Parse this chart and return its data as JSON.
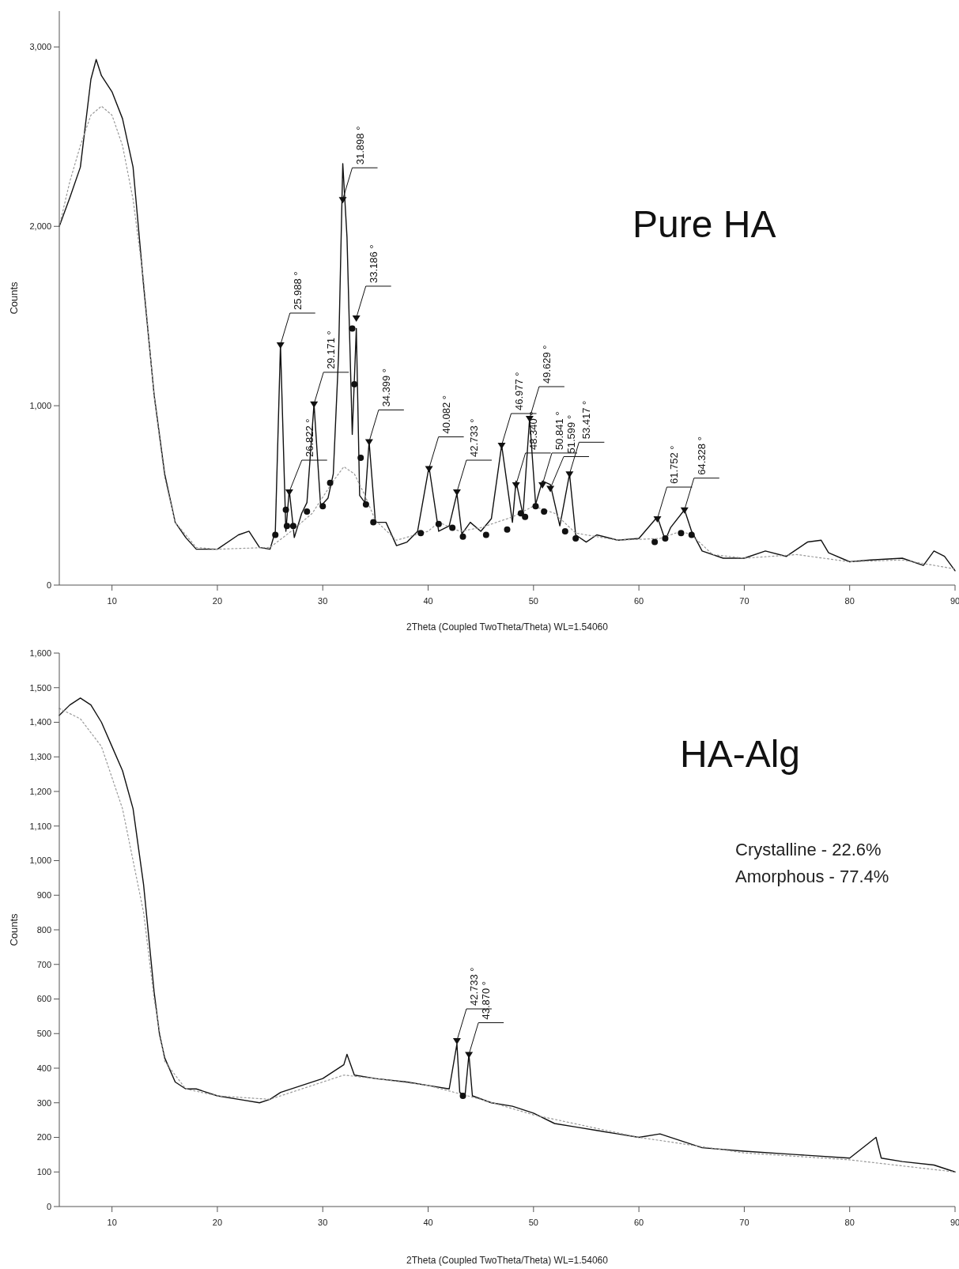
{
  "chart_data": [
    {
      "type": "line",
      "title": "Pure HA",
      "xlabel": "2Theta (Coupled TwoTheta/Theta) WL=1.54060",
      "ylabel": "Counts",
      "xlim": [
        5,
        90
      ],
      "ylim": [
        0,
        3200
      ],
      "xticks": [
        10,
        20,
        30,
        40,
        50,
        60,
        70,
        80,
        90
      ],
      "yticks": [
        0,
        {
          "value": 1000,
          "label": "1,000"
        },
        {
          "value": 2000,
          "label": "2,000"
        },
        {
          "value": 3000,
          "label": "3,000"
        }
      ],
      "marker": "none",
      "series": [
        {
          "color": "#111111",
          "line_style": "solid",
          "x": [
            5,
            6,
            7,
            8,
            8.5,
            9,
            10,
            11,
            12,
            13,
            14,
            15,
            16,
            17,
            18,
            20,
            22,
            23,
            24,
            25,
            25.5,
            25.988,
            26.5,
            26.822,
            27.3,
            28,
            28.5,
            29.171,
            29.8,
            30.5,
            31,
            31.5,
            31.9,
            32.3,
            32.8,
            33.186,
            33.5,
            34,
            34.399,
            35,
            36,
            37,
            38,
            39,
            40.082,
            41,
            42,
            42.733,
            43.2,
            44,
            45,
            46,
            46.977,
            48,
            48.34,
            49,
            49.629,
            50.2,
            50.841,
            51.599,
            52.5,
            53.417,
            54,
            55,
            56,
            58,
            60,
            61.752,
            62.5,
            63,
            64.328,
            65,
            66,
            68,
            70,
            72,
            74,
            76,
            77.3,
            78,
            80,
            82,
            85,
            87,
            88,
            89,
            90
          ],
          "values": [
            2000,
            2160,
            2330,
            2820,
            2930,
            2840,
            2750,
            2600,
            2330,
            1670,
            1060,
            620,
            350,
            265,
            200,
            200,
            280,
            300,
            210,
            200,
            300,
            1340,
            300,
            530,
            265,
            400,
            460,
            1010,
            440,
            485,
            620,
            1280,
            2350,
            1940,
            840,
            1430,
            500,
            460,
            800,
            350,
            350,
            220,
            240,
            300,
            660,
            300,
            330,
            510,
            285,
            350,
            300,
            370,
            780,
            350,
            580,
            390,
            930,
            450,
            580,
            560,
            330,
            620,
            280,
            240,
            280,
            250,
            260,
            380,
            250,
            320,
            420,
            300,
            190,
            150,
            150,
            190,
            160,
            240,
            250,
            180,
            130,
            140,
            150,
            110,
            190,
            160,
            80
          ]
        },
        {
          "color": "#999999",
          "line_style": "dotted",
          "x": [
            5,
            6,
            7,
            8,
            9,
            10,
            11,
            12,
            13,
            14,
            15,
            16,
            18,
            20,
            25,
            27,
            29,
            31,
            32,
            33,
            34,
            35,
            37,
            40,
            41,
            43,
            45,
            48,
            50,
            52,
            54,
            58,
            62,
            64,
            65,
            67,
            70,
            75,
            80,
            85,
            90
          ],
          "values": [
            2000,
            2250,
            2450,
            2620,
            2670,
            2620,
            2450,
            2150,
            1700,
            1050,
            600,
            350,
            210,
            200,
            210,
            300,
            400,
            580,
            660,
            620,
            500,
            360,
            250,
            300,
            350,
            300,
            320,
            380,
            440,
            400,
            290,
            250,
            260,
            300,
            280,
            170,
            150,
            170,
            130,
            140,
            90
          ]
        },
        {
          "type": "scatter",
          "color": "#111111",
          "marker": "circle",
          "x": [
            25.5,
            26.5,
            26.6,
            27.2,
            28.5,
            30,
            30.7,
            32.8,
            33,
            33.6,
            34.1,
            34.8,
            39.3,
            41,
            42.3,
            43.3,
            45.5,
            47.5,
            48.8,
            49.2,
            50.2,
            51,
            53,
            54,
            61.5,
            62.5,
            64,
            65
          ],
          "values": [
            280,
            420,
            330,
            330,
            410,
            440,
            570,
            1430,
            1120,
            710,
            450,
            350,
            290,
            340,
            320,
            270,
            280,
            310,
            400,
            380,
            440,
            410,
            300,
            260,
            240,
            260,
            290,
            280
          ]
        },
        {
          "type": "scatter",
          "color": "#111111",
          "marker": "triangle",
          "x": [
            25.988,
            26.822,
            29.171,
            31.898,
            33.186,
            34.399,
            40.082,
            42.733,
            46.977,
            48.34,
            49.629,
            50.841,
            51.599,
            53.417,
            61.752,
            64.328
          ],
          "values": [
            1340,
            520,
            1010,
            2150,
            1490,
            800,
            650,
            520,
            780,
            560,
            930,
            560,
            540,
            620,
            370,
            420
          ]
        }
      ],
      "annotations": [
        {
          "text": "25.988 °",
          "x": 25.988,
          "y": 1340
        },
        {
          "text": "26.822 °",
          "x": 26.822,
          "y": 520
        },
        {
          "text": "29.171 °",
          "x": 29.171,
          "y": 1010
        },
        {
          "text": "31.898 °",
          "x": 31.898,
          "y": 2150
        },
        {
          "text": "33.186 °",
          "x": 33.186,
          "y": 1490
        },
        {
          "text": "34.399 °",
          "x": 34.399,
          "y": 800
        },
        {
          "text": "40.082 °",
          "x": 40.082,
          "y": 650
        },
        {
          "text": "42.733 °",
          "x": 42.733,
          "y": 520
        },
        {
          "text": "46.977 °",
          "x": 46.977,
          "y": 780
        },
        {
          "text": "48.340 °",
          "x": 48.34,
          "y": 560
        },
        {
          "text": "49.629 °",
          "x": 49.629,
          "y": 930
        },
        {
          "text": "50.841 °",
          "x": 50.841,
          "y": 560
        },
        {
          "text": "51.599 °",
          "x": 51.599,
          "y": 540
        },
        {
          "text": "53.417 °",
          "x": 53.417,
          "y": 620
        },
        {
          "text": "61.752 °",
          "x": 61.752,
          "y": 370
        },
        {
          "text": "64.328 °",
          "x": 64.328,
          "y": 420
        }
      ]
    },
    {
      "type": "line",
      "title": "HA-Alg",
      "xlabel": "2Theta (Coupled TwoTheta/Theta) WL=1.54060",
      "ylabel": "Counts",
      "xlim": [
        5,
        90
      ],
      "ylim": [
        0,
        1600
      ],
      "xticks": [
        10,
        20,
        30,
        40,
        50,
        60,
        70,
        80,
        90
      ],
      "yticks": [
        0,
        100,
        200,
        300,
        400,
        500,
        600,
        700,
        800,
        900,
        {
          "value": 1000,
          "label": "1,000"
        },
        {
          "value": 1100,
          "label": "1,100"
        },
        {
          "value": 1200,
          "label": "1,200"
        },
        {
          "value": 1300,
          "label": "1,300"
        },
        {
          "value": 1400,
          "label": "1,400"
        },
        {
          "value": 1500,
          "label": "1,500"
        },
        {
          "value": 1600,
          "label": "1,600"
        }
      ],
      "marker": "none",
      "series": [
        {
          "color": "#111111",
          "line_style": "solid",
          "x": [
            5,
            6,
            7,
            8,
            9,
            10,
            11,
            12,
            13,
            14,
            14.5,
            15,
            16,
            17,
            18,
            19,
            20,
            22,
            24,
            25,
            26,
            28,
            30,
            32,
            32.3,
            33,
            35,
            38,
            40,
            42,
            42.733,
            43,
            43.5,
            43.87,
            44.2,
            46,
            48,
            50,
            52,
            54,
            56,
            58,
            60,
            62,
            64,
            66,
            70,
            75,
            80,
            82.5,
            83,
            85,
            88,
            90
          ],
          "values": [
            1420,
            1450,
            1470,
            1450,
            1400,
            1330,
            1260,
            1150,
            930,
            620,
            500,
            430,
            360,
            340,
            340,
            330,
            320,
            310,
            300,
            310,
            330,
            350,
            370,
            410,
            440,
            380,
            370,
            360,
            350,
            340,
            470,
            330,
            320,
            440,
            320,
            300,
            290,
            270,
            240,
            230,
            220,
            210,
            200,
            210,
            190,
            170,
            160,
            150,
            140,
            200,
            140,
            130,
            120,
            100
          ]
        },
        {
          "color": "#999999",
          "line_style": "dotted",
          "x": [
            5,
            7,
            9,
            11,
            12,
            13,
            14,
            15,
            17,
            20,
            25,
            30,
            32,
            35,
            40,
            45,
            50,
            60,
            70,
            80,
            90
          ],
          "values": [
            1440,
            1410,
            1330,
            1150,
            1000,
            850,
            600,
            420,
            340,
            320,
            310,
            360,
            380,
            370,
            350,
            310,
            265,
            200,
            155,
            135,
            100
          ]
        },
        {
          "type": "scatter",
          "color": "#111111",
          "marker": "circle",
          "x": [
            43.3
          ],
          "values": [
            320
          ]
        },
        {
          "type": "scatter",
          "color": "#111111",
          "marker": "triangle",
          "x": [
            42.733,
            43.87
          ],
          "values": [
            480,
            440
          ]
        }
      ],
      "annotations": [
        {
          "text": "42.733 °",
          "x": 42.733,
          "y": 480
        },
        {
          "text": "43.870 °",
          "x": 43.87,
          "y": 440
        },
        "Crystalline - 22.6%",
        "Amorphous - 77.4%"
      ]
    }
  ]
}
